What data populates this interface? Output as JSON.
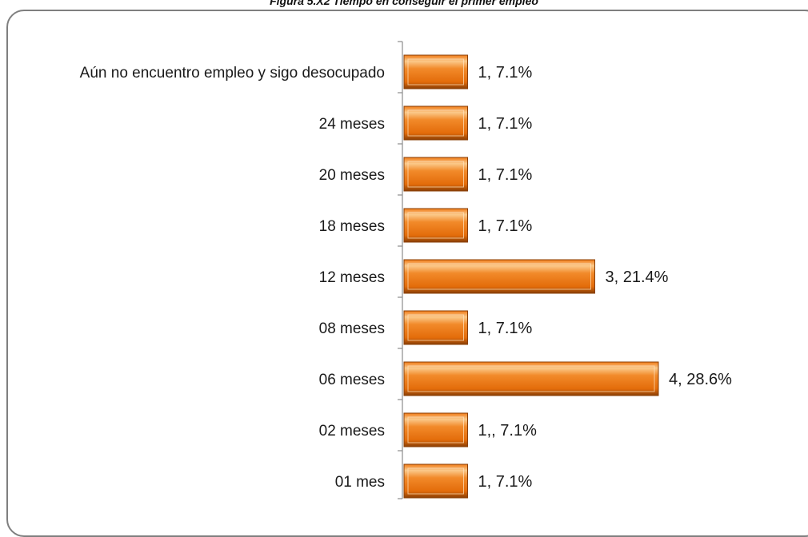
{
  "title": "Figura 5.X2 Tiempo en conseguir el primer empleo",
  "colors": {
    "bar_light": "#fbc98a",
    "bar_mid": "#f07a16",
    "bar_dark": "#8a3f06",
    "axis": "#8c8c8c",
    "frame": "#7f7f7f"
  },
  "chart_data": {
    "type": "bar",
    "orientation": "horizontal",
    "categories": [
      "Aún no encuentro empleo y sigo desocupado",
      "24 meses",
      "20 meses",
      "18 meses",
      "12 meses",
      "08 meses",
      "06 meses",
      "02 meses",
      "01 mes"
    ],
    "values": [
      1,
      1,
      1,
      1,
      3,
      1,
      4,
      1,
      1
    ],
    "data_labels": [
      "1, 7.1%",
      "1, 7.1%",
      "1, 7.1%",
      "1, 7.1%",
      "3, 21.4%",
      "1, 7.1%",
      "4, 28.6%",
      "1,, 7.1%",
      "1, 7.1%"
    ],
    "grid": false,
    "legend": "none",
    "xlim": [
      0,
      4.5
    ]
  }
}
